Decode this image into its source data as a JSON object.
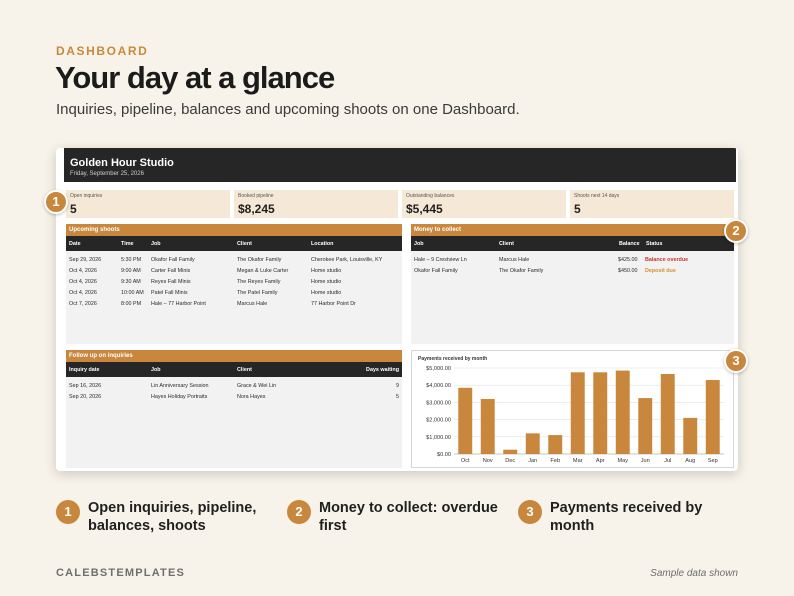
{
  "eyebrow": "DASHBOARD",
  "headline": "Your day at a glance",
  "subhead": "Inquiries, pipeline, balances and upcoming shoots on one Dashboard.",
  "studio": {
    "name": "Golden Hour Studio",
    "date": "Friday, September 25, 2026"
  },
  "kpis": [
    {
      "label": "Open inquiries",
      "value": "5"
    },
    {
      "label": "Booked pipeline",
      "value": "$8,245"
    },
    {
      "label": "Outstanding balances",
      "value": "$5,445"
    },
    {
      "label": "Shoots next 14 days",
      "value": "5"
    }
  ],
  "upcoming": {
    "title": "Upcoming shoots",
    "columns": [
      "Date",
      "Time",
      "Job",
      "Client",
      "Location"
    ],
    "rows": [
      [
        "Sep 29, 2026",
        "5:30 PM",
        "Okafor Fall Family",
        "The Okafor Family",
        "Cherokee Park, Louisville, KY"
      ],
      [
        "Oct 4, 2026",
        "9:00 AM",
        "Carter Fall Minis",
        "Megan & Luke Carter",
        "Home studio"
      ],
      [
        "Oct 4, 2026",
        "9:30 AM",
        "Reyes Fall Minis",
        "The Reyes Family",
        "Home studio"
      ],
      [
        "Oct 4, 2026",
        "10:00 AM",
        "Patel Fall Minis",
        "The Patel Family",
        "Home studio"
      ],
      [
        "Oct 7, 2026",
        "8:00 PM",
        "Hale – 77 Harbor Point",
        "Marcus Hale",
        "77 Harbor Point Dr"
      ]
    ]
  },
  "money": {
    "title": "Money to collect",
    "columns": [
      "Job",
      "Client",
      "Balance",
      "Status"
    ],
    "rows": [
      [
        "Hale – 9 Crestview Ln",
        "Marcus Hale",
        "$425.00",
        "Balance overdue"
      ],
      [
        "Okafor Fall Family",
        "The Okafor Family",
        "$450.00",
        "Deposit due"
      ]
    ]
  },
  "followup": {
    "title": "Follow up on inquiries",
    "columns": [
      "Inquiry date",
      "Job",
      "Client",
      "Days waiting"
    ],
    "rows": [
      [
        "Sep 16, 2026",
        "Lin Anniversary Session",
        "Grace & Wei Lin",
        "9"
      ],
      [
        "Sep 20, 2026",
        "Hayes Holiday Portraits",
        "Nora Hayes",
        "5"
      ]
    ]
  },
  "colors": {
    "accent": "#c8873c",
    "overdue": "#c0392b",
    "deposit": "#d4902e",
    "dark": "#262626"
  },
  "chart_data": {
    "type": "bar",
    "title": "Payments received by month",
    "categories": [
      "Oct",
      "Nov",
      "Dec",
      "Jan",
      "Feb",
      "Mar",
      "Apr",
      "May",
      "Jun",
      "Jul",
      "Aug",
      "Sep"
    ],
    "values": [
      3850,
      3200,
      250,
      1200,
      1100,
      4750,
      4750,
      4850,
      3250,
      4650,
      2100,
      4300
    ],
    "yticks": [
      "$5,000.00",
      "$4,000.00",
      "$3,000.00",
      "$2,000.00",
      "$1,000.00",
      "$0.00"
    ],
    "ylim": [
      0,
      5000
    ],
    "xlabel": "",
    "ylabel": "",
    "grid": true
  },
  "callouts": [
    "1",
    "2",
    "3"
  ],
  "features": [
    {
      "num": "1",
      "text": "Open inquiries, pipeline, balances, shoots"
    },
    {
      "num": "2",
      "text": "Money to collect: overdue first"
    },
    {
      "num": "3",
      "text": "Payments received by month"
    }
  ],
  "footer": {
    "brand": "CALEBSTEMPLATES",
    "note": "Sample data shown"
  }
}
